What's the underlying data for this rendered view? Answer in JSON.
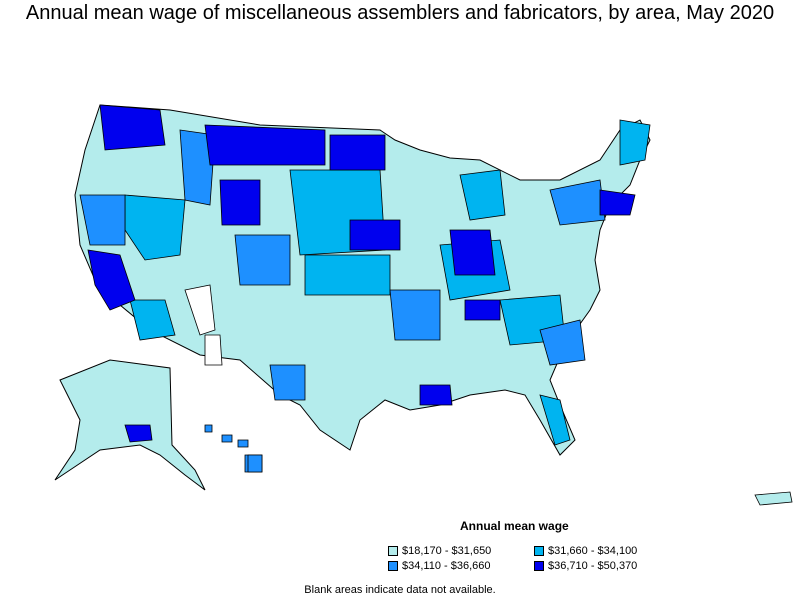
{
  "title": "Annual mean wage of miscellaneous assemblers and fabricators, by area, May 2020",
  "legend": {
    "title": "Annual mean wage",
    "items": [
      {
        "label": "$18,170 - $31,650",
        "color": "#b4ecec"
      },
      {
        "label": "$31,660 - $34,100",
        "color": "#00b4f0"
      },
      {
        "label": "$34,110 - $36,660",
        "color": "#1e90ff"
      },
      {
        "label": "$36,710 - $50,370",
        "color": "#0000ee"
      }
    ]
  },
  "note": "Blank areas indicate data not available."
}
